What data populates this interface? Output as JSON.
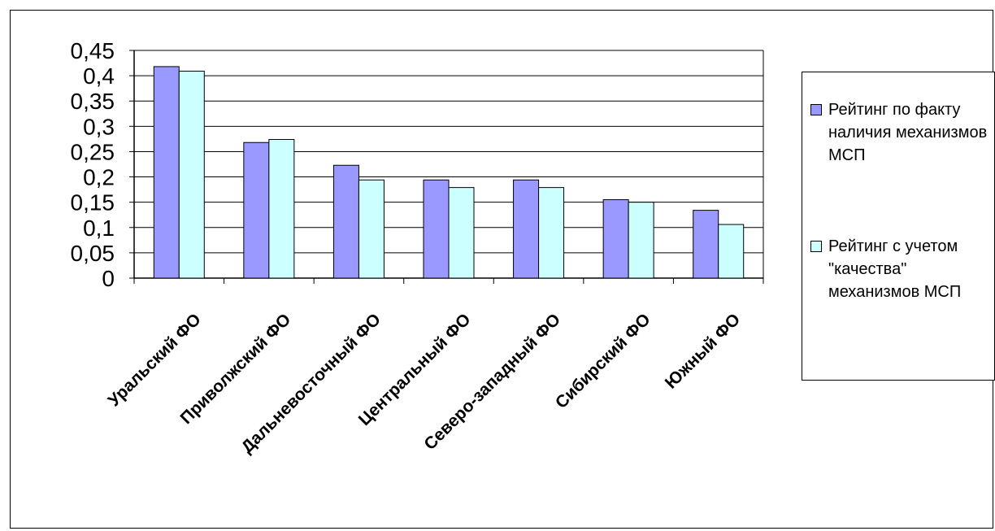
{
  "chart_data": {
    "type": "bar",
    "categories": [
      "Уральский ФО",
      "Приволжский ФО",
      "Дальневосточный ФО",
      "Центральный ФО",
      "Северо-западный ФО",
      "Сибирский ФО",
      "Южный ФО"
    ],
    "series": [
      {
        "name": "Рейтинг по факту наличия механизмов МСП",
        "values": [
          0.418,
          0.268,
          0.223,
          0.194,
          0.194,
          0.155,
          0.134
        ],
        "color": "#9999ff"
      },
      {
        "name": "Рейтинг с учетом \"качества\" механизмов МСП",
        "values": [
          0.409,
          0.274,
          0.194,
          0.179,
          0.179,
          0.15,
          0.106
        ],
        "color": "#ccffff"
      }
    ],
    "yticks": [
      "0",
      "0,05",
      "0,1",
      "0,15",
      "0,2",
      "0,25",
      "0,3",
      "0,35",
      "0,4",
      "0,45"
    ],
    "ylim": [
      0,
      0.45
    ],
    "grid": true,
    "legend_position": "right",
    "title": "",
    "xlabel": "",
    "ylabel": ""
  }
}
